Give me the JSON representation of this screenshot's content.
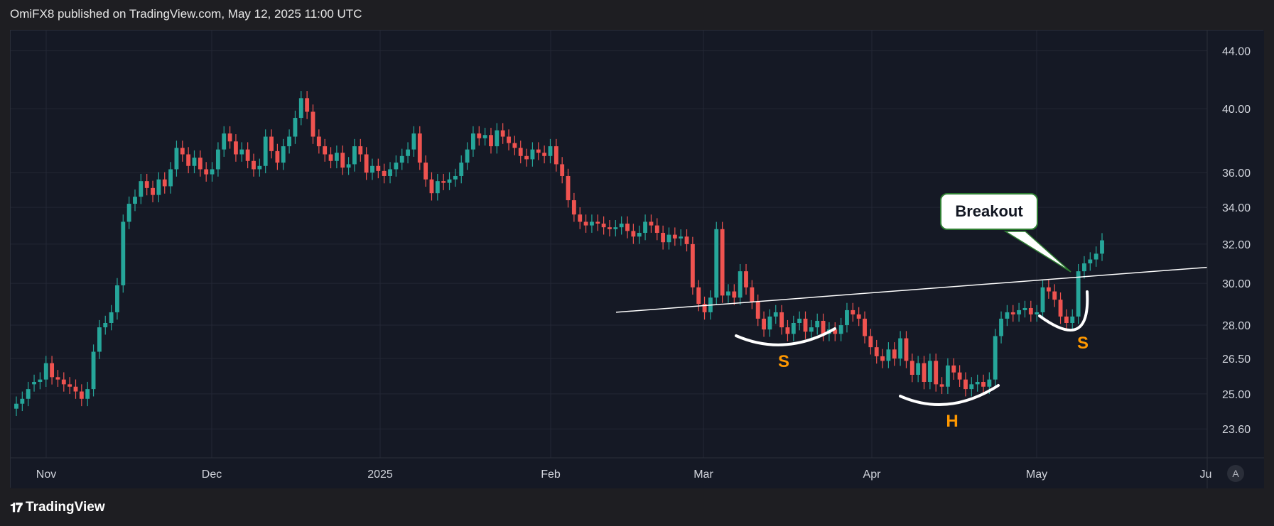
{
  "header": {
    "text": "OmiFX8 published on TradingView.com, May 12, 2025 11:00 UTC"
  },
  "footer": {
    "brand": "TradingView",
    "logo_icon": "tradingview-logo-icon"
  },
  "axis": {
    "auto_button": "A"
  },
  "annotations": {
    "breakout": "Breakout",
    "left_shoulder": "S",
    "head": "H",
    "right_shoulder": "S"
  },
  "colors": {
    "up": "#26a69a",
    "down": "#ef5350",
    "background": "#151925",
    "grid": "#232735",
    "neckline": "#ffffff",
    "pattern_label": "#ff9800"
  },
  "chart_data": {
    "type": "candlestick",
    "title": "",
    "xlabel": "",
    "ylabel": "",
    "y_scale": "log",
    "ylim": [
      22.5,
      45.5
    ],
    "y_ticks": [
      "44.00",
      "40.00",
      "36.00",
      "34.00",
      "32.00",
      "30.00",
      "28.00",
      "26.50",
      "25.00",
      "23.60"
    ],
    "x_ticks": [
      "Nov",
      "Dec",
      "2025",
      "Feb",
      "Mar",
      "Apr",
      "May",
      "Ju"
    ],
    "grid": true,
    "series": [
      {
        "close": [
          24.6,
          24.8,
          25.2,
          25.5,
          25.6,
          26.3,
          25.7,
          25.6,
          25.4,
          25.3,
          25.1,
          24.8,
          25.2,
          26.8,
          27.9,
          28.1,
          28.6,
          29.9,
          33.2,
          34.2,
          34.6,
          35.5,
          35.1,
          34.7,
          35.6,
          35.2,
          36.2,
          37.5,
          37.1,
          36.4,
          36.9,
          36.2,
          35.9,
          36.2,
          37.4,
          38.4,
          37.9,
          37.1,
          37.4,
          36.7,
          36.2,
          36.4,
          38.2,
          37.3,
          36.6,
          37.6,
          38.2,
          39.4,
          40.7,
          39.8,
          38.2,
          37.6,
          37.1,
          36.7,
          37.2,
          36.3,
          36.5,
          37.6,
          37.1,
          36.0,
          36.4,
          36.1,
          35.8,
          36.2,
          36.6,
          37.0,
          37.4,
          38.4,
          36.6,
          35.6,
          34.8,
          35.5,
          35.4,
          35.6,
          35.8,
          36.6,
          37.4,
          38.4,
          38.1,
          38.3,
          37.6,
          38.6,
          38.2,
          37.8,
          37.5,
          37.0,
          36.8,
          37.4,
          37.2,
          37.0,
          37.6,
          36.5,
          35.8,
          34.4,
          33.6,
          33.2,
          33.0,
          33.2,
          33.1,
          32.9,
          32.8,
          32.9,
          33.1,
          32.7,
          32.4,
          32.6,
          33.2,
          33.0,
          32.6,
          32.1,
          32.5,
          32.3,
          32.4,
          32.0,
          29.8,
          29.0,
          28.6,
          29.3,
          32.8,
          29.4,
          29.6,
          29.3,
          30.6,
          29.8,
          29.1,
          28.3,
          27.8,
          28.4,
          28.6,
          27.9,
          27.6,
          28.1,
          28.3,
          27.7,
          27.9,
          28.2,
          27.6,
          27.8,
          27.6,
          28.0,
          28.7,
          28.5,
          28.3,
          27.5,
          27.0,
          26.6,
          26.4,
          26.9,
          26.5,
          27.4,
          26.4,
          25.8,
          26.3,
          25.5,
          26.4,
          25.4,
          25.3,
          26.2,
          25.9,
          25.6,
          25.2,
          25.4,
          25.5,
          25.3,
          25.6,
          27.5,
          28.3,
          28.6,
          28.5,
          28.7,
          28.8,
          28.5,
          28.6,
          29.8,
          29.6,
          29.2,
          28.4,
          28.1,
          28.4,
          30.6,
          31.0,
          31.2,
          31.5,
          32.2
        ],
        "open": [
          24.4,
          24.6,
          24.8,
          25.4,
          25.5,
          25.6,
          26.3,
          25.7,
          25.6,
          25.4,
          25.3,
          25.1,
          24.8,
          25.2,
          26.8,
          27.9,
          28.1,
          28.6,
          29.9,
          33.2,
          34.2,
          34.6,
          35.5,
          35.1,
          34.7,
          35.6,
          35.2,
          36.2,
          37.5,
          37.1,
          36.4,
          36.9,
          36.2,
          35.9,
          36.2,
          37.4,
          38.4,
          37.9,
          37.1,
          37.4,
          36.7,
          36.2,
          36.4,
          38.2,
          37.3,
          36.6,
          37.6,
          38.2,
          39.4,
          40.7,
          39.8,
          38.2,
          37.6,
          37.1,
          36.7,
          37.2,
          36.3,
          36.5,
          37.6,
          37.1,
          36.0,
          36.4,
          36.1,
          35.8,
          36.2,
          36.6,
          37.0,
          37.4,
          38.4,
          36.6,
          35.6,
          34.8,
          35.5,
          35.4,
          35.6,
          35.8,
          36.6,
          37.4,
          38.4,
          38.1,
          38.3,
          37.6,
          38.6,
          38.2,
          37.8,
          37.5,
          37.0,
          36.8,
          37.4,
          37.2,
          37.0,
          37.6,
          36.5,
          35.8,
          34.4,
          33.6,
          33.2,
          33.0,
          33.2,
          33.1,
          32.9,
          32.8,
          32.9,
          33.1,
          32.7,
          32.4,
          32.6,
          33.2,
          33.0,
          32.6,
          32.1,
          32.5,
          32.3,
          32.4,
          32.0,
          29.8,
          29.0,
          28.6,
          29.3,
          32.8,
          29.4,
          29.6,
          29.3,
          30.6,
          29.8,
          29.1,
          28.3,
          27.8,
          28.4,
          28.6,
          27.9,
          27.6,
          28.1,
          28.3,
          27.7,
          27.9,
          28.2,
          27.6,
          27.8,
          27.6,
          28.0,
          28.7,
          28.5,
          28.3,
          27.5,
          27.0,
          26.6,
          26.4,
          26.9,
          26.5,
          27.4,
          26.4,
          25.8,
          26.3,
          25.5,
          26.4,
          25.4,
          25.3,
          26.2,
          25.9,
          25.6,
          25.2,
          25.4,
          25.5,
          25.3,
          25.6,
          27.5,
          28.3,
          28.6,
          28.5,
          28.7,
          28.8,
          28.5,
          28.6,
          29.8,
          29.6,
          29.2,
          28.4,
          28.1,
          28.4,
          30.6,
          31.0,
          31.2,
          31.5
        ]
      }
    ],
    "neckline": {
      "from": [
        "2025-02-14",
        28.6
      ],
      "to": [
        "2025-06-01",
        30.5
      ]
    }
  }
}
